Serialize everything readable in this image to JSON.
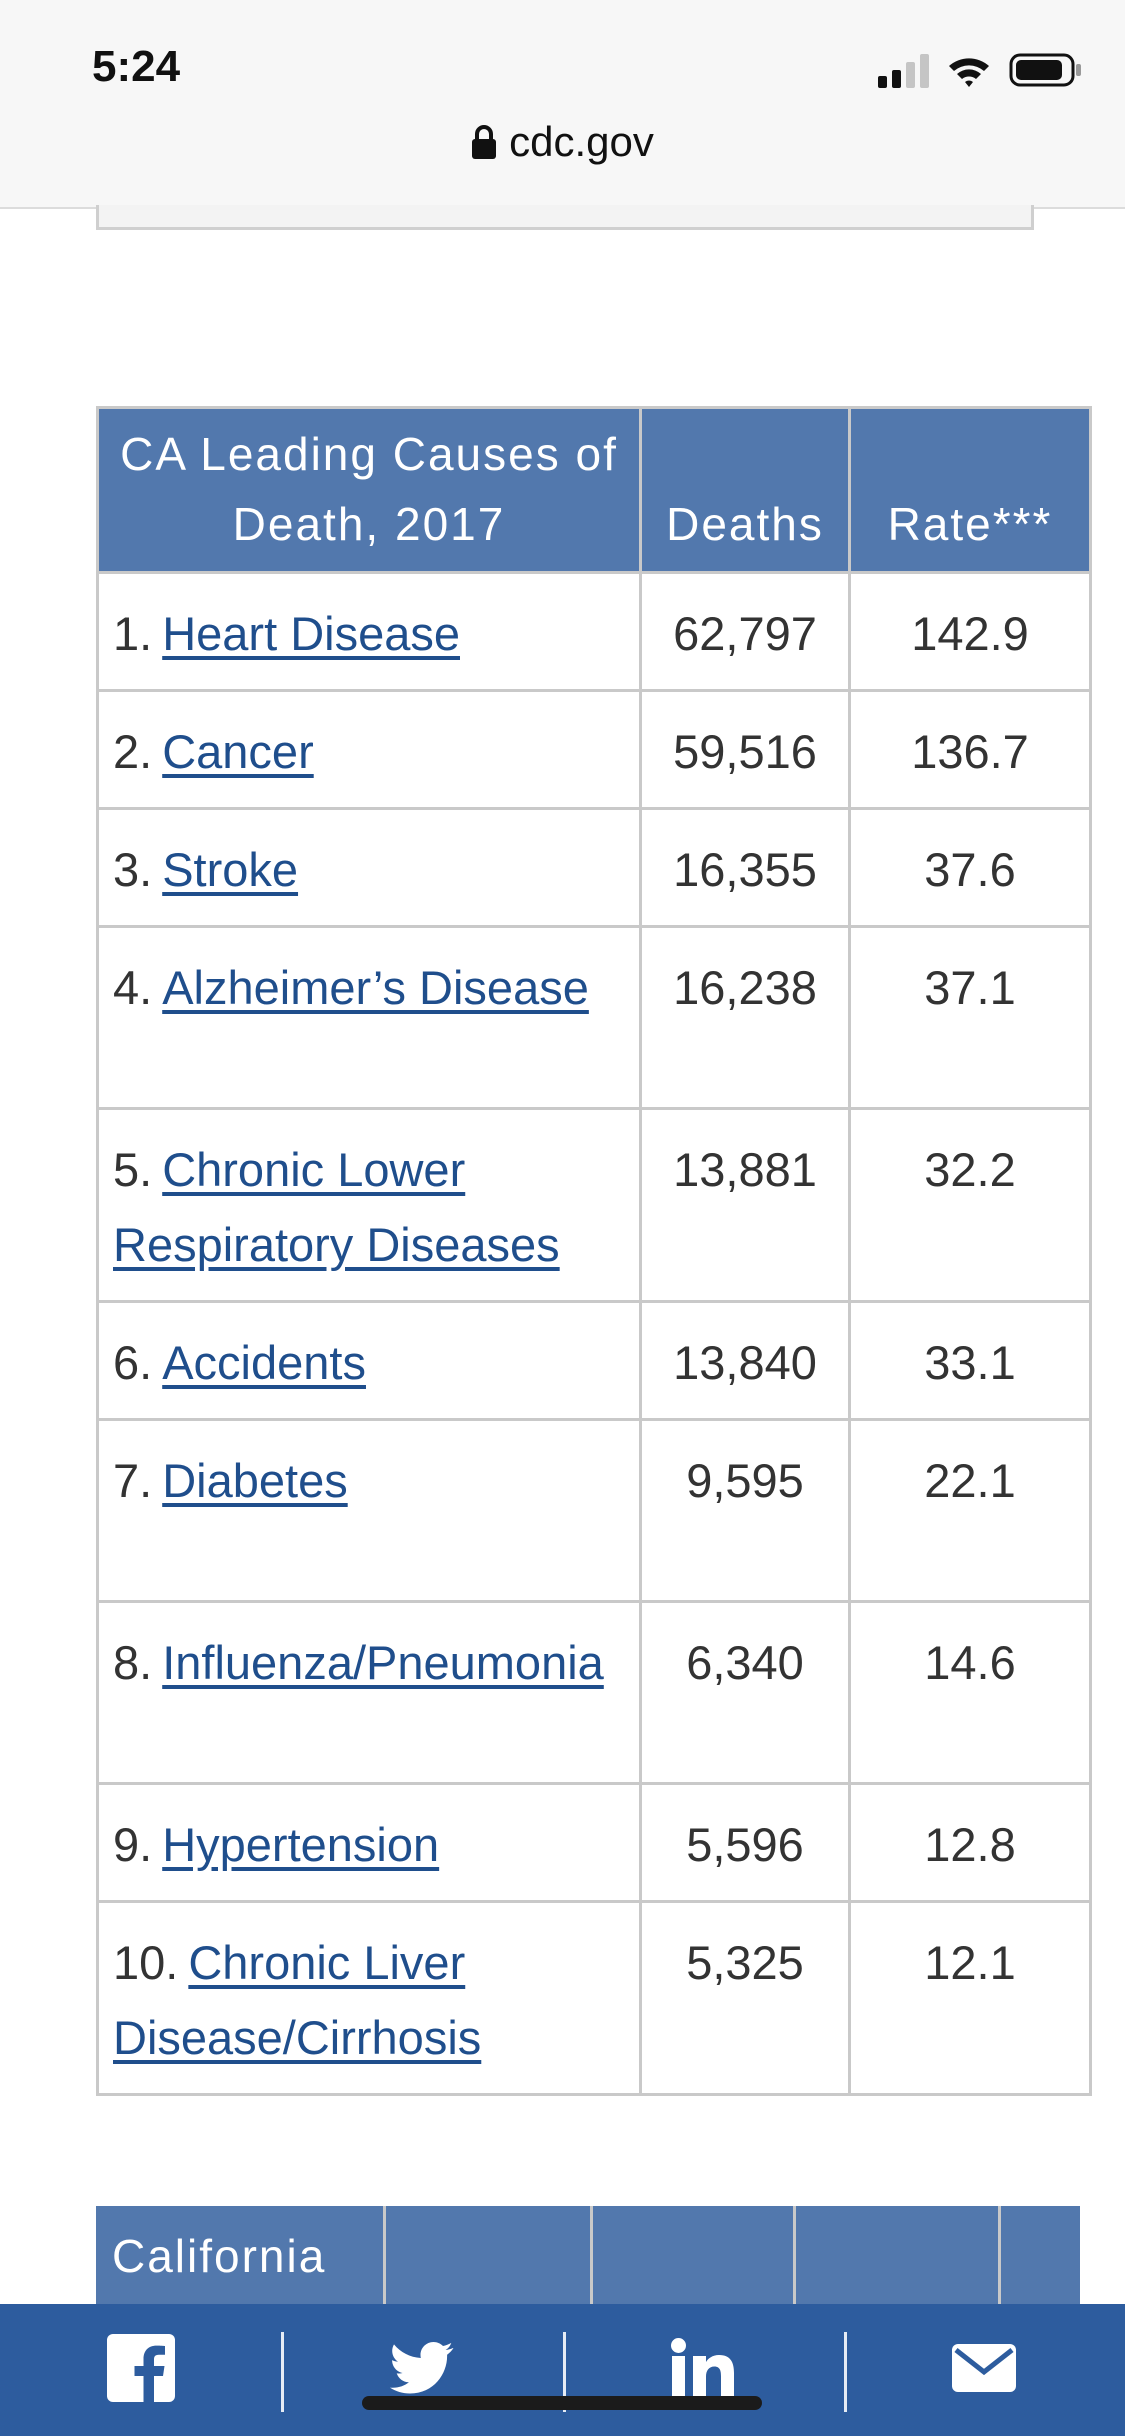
{
  "status_bar": {
    "time": "5:24",
    "url": "cdc.gov"
  },
  "table": {
    "headers": {
      "cause": "CA Leading Causes of Death, 2017",
      "deaths": "Deaths",
      "rate": "Rate***"
    },
    "rows": [
      {
        "rank": "1.",
        "cause": "Heart Disease",
        "deaths": "62,797",
        "rate": "142.9"
      },
      {
        "rank": "2.",
        "cause": "Cancer",
        "deaths": "59,516",
        "rate": "136.7"
      },
      {
        "rank": "3.",
        "cause": "Stroke",
        "deaths": "16,355",
        "rate": "37.6"
      },
      {
        "rank": "4.",
        "cause": "Alzheimer’s Disease",
        "deaths": "16,238",
        "rate": "37.1"
      },
      {
        "rank": "5.",
        "cause": "Chronic Lower Respiratory Diseases",
        "deaths": "13,881",
        "rate": "32.2"
      },
      {
        "rank": "6.",
        "cause": "Accidents",
        "deaths": "13,840",
        "rate": "33.1"
      },
      {
        "rank": "7.",
        "cause": "Diabetes",
        "deaths": "9,595",
        "rate": "22.1"
      },
      {
        "rank": "8.",
        "cause": "Influenza/Pneumonia",
        "deaths": "6,340",
        "rate": "14.6"
      },
      {
        "rank": "9.",
        "cause": "Hypertension",
        "deaths": "5,596",
        "rate": "12.8"
      },
      {
        "rank": "10.",
        "cause": "Chronic Liver Disease/Cirrhosis",
        "deaths": "5,325",
        "rate": "12.1"
      }
    ]
  },
  "second_table": {
    "header_first_cell": "California"
  },
  "share_bar": {
    "items": [
      "facebook-icon",
      "twitter-icon",
      "linkedin-icon",
      "email-icon"
    ]
  },
  "colors": {
    "header_blue": "#5278ad",
    "link_blue": "#1f4e8c",
    "share_bar_blue": "#2d5c9e"
  }
}
